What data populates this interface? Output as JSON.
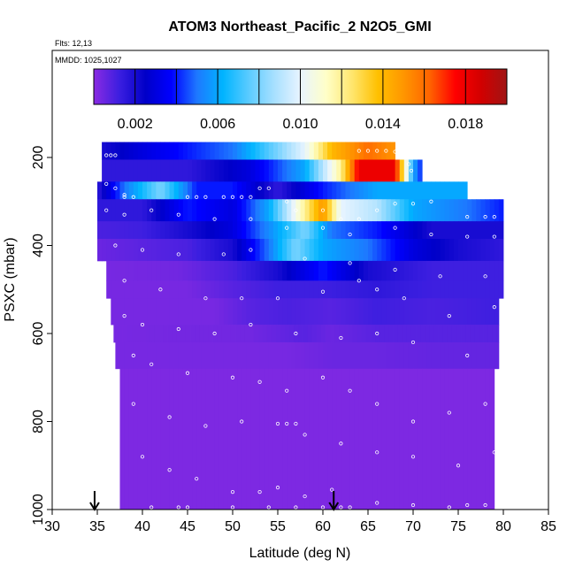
{
  "chart_data": {
    "type": "heatmap",
    "title": "ATOM3 Northeast_Pacific_2 N2O5_GMI",
    "flights_label": "Flts: 12,13",
    "mmdd_label": "MMDD: 1025,1027",
    "xlabel": "Latitude (deg N)",
    "ylabel": "PSXC (mbar)",
    "xlim": [
      30,
      85
    ],
    "ylim": [
      1000,
      0
    ],
    "x_ticks": [
      "30",
      "35",
      "40",
      "45",
      "50",
      "55",
      "60",
      "65",
      "70",
      "75",
      "80",
      "85"
    ],
    "y_ticks": [
      "200",
      "400",
      "600",
      "800",
      "1000"
    ],
    "colorbar": {
      "range": [
        0,
        0.02
      ],
      "tick_labels": [
        "0.002",
        "0.006",
        "0.010",
        "0.014",
        "0.018"
      ],
      "colors": [
        "#8a2be2",
        "#3b1ee0",
        "#0000c8",
        "#0000ff",
        "#1e78ff",
        "#00b4ff",
        "#5acbff",
        "#a8e0ff",
        "#e8f4ff",
        "#ffffc8",
        "#ffe66e",
        "#ffc000",
        "#ff9600",
        "#ff6400",
        "#ff0000",
        "#d20000",
        "#a01414"
      ]
    },
    "flight_markers_lat": [
      34.7,
      61.2
    ],
    "rows": [
      {
        "p0": 165,
        "p1": 205,
        "lat0": 35.5,
        "lat1": 68.0,
        "stops": [
          [
            35.5,
            0.002
          ],
          [
            40,
            0.003
          ],
          [
            50,
            0.005
          ],
          [
            55,
            0.008
          ],
          [
            58,
            0.01
          ],
          [
            61,
            0.014
          ],
          [
            65,
            0.016
          ],
          [
            68,
            0.015
          ]
        ]
      },
      {
        "p0": 205,
        "p1": 255,
        "lat0": 35.5,
        "lat1": 71.0,
        "stops": [
          [
            35.5,
            0.0015
          ],
          [
            45,
            0.0015
          ],
          [
            52,
            0.003
          ],
          [
            58,
            0.006
          ],
          [
            62,
            0.012
          ],
          [
            64,
            0.018
          ],
          [
            68,
            0.018
          ],
          [
            70,
            0.006
          ],
          [
            71,
            0.004
          ]
        ]
      },
      {
        "p0": 255,
        "p1": 295,
        "lat0": 35.0,
        "lat1": 76.0,
        "stops": [
          [
            35,
            0.0015
          ],
          [
            38,
            0.005
          ],
          [
            42,
            0.008
          ],
          [
            46,
            0.004
          ],
          [
            50,
            0.004
          ],
          [
            55,
            0.0015
          ],
          [
            60,
            0.004
          ],
          [
            66,
            0.006
          ],
          [
            72,
            0.006
          ],
          [
            76,
            0.006
          ]
        ]
      },
      {
        "p0": 295,
        "p1": 345,
        "lat0": 35.0,
        "lat1": 80.0,
        "stops": [
          [
            35,
            0.0015
          ],
          [
            40,
            0.0015
          ],
          [
            45,
            0.004
          ],
          [
            50,
            0.003
          ],
          [
            54,
            0.006
          ],
          [
            58,
            0.012
          ],
          [
            60,
            0.015
          ],
          [
            62,
            0.01
          ],
          [
            66,
            0.009
          ],
          [
            70,
            0.006
          ],
          [
            76,
            0.005
          ],
          [
            80,
            0.004
          ]
        ]
      },
      {
        "p0": 345,
        "p1": 385,
        "lat0": 35.0,
        "lat1": 80.0,
        "stops": [
          [
            35,
            0.001
          ],
          [
            40,
            0.0012
          ],
          [
            45,
            0.002
          ],
          [
            50,
            0.003
          ],
          [
            55,
            0.006
          ],
          [
            58,
            0.008
          ],
          [
            61,
            0.005
          ],
          [
            66,
            0.004
          ],
          [
            72,
            0.002
          ],
          [
            80,
            0.002
          ]
        ]
      },
      {
        "p0": 385,
        "p1": 435,
        "lat0": 35.0,
        "lat1": 80.0,
        "stops": [
          [
            35,
            0.0005
          ],
          [
            45,
            0.001
          ],
          [
            50,
            0.002
          ],
          [
            54,
            0.005
          ],
          [
            57,
            0.008
          ],
          [
            60,
            0.006
          ],
          [
            65,
            0.005
          ],
          [
            70,
            0.003
          ],
          [
            75,
            0.002
          ],
          [
            80,
            0.0015
          ]
        ]
      },
      {
        "p0": 435,
        "p1": 480,
        "lat0": 36.0,
        "lat1": 80.0,
        "stops": [
          [
            36,
            0.0003
          ],
          [
            44,
            0.0004
          ],
          [
            50,
            0.001
          ],
          [
            55,
            0.002
          ],
          [
            60,
            0.004
          ],
          [
            65,
            0.002
          ],
          [
            72,
            0.0012
          ],
          [
            80,
            0.0012
          ]
        ]
      },
      {
        "p0": 480,
        "p1": 520,
        "lat0": 36.0,
        "lat1": 80.0,
        "stops": [
          [
            36,
            0.0003
          ],
          [
            45,
            0.0003
          ],
          [
            50,
            0.0008
          ],
          [
            55,
            0.0012
          ],
          [
            60,
            0.0012
          ],
          [
            66,
            0.0015
          ],
          [
            72,
            0.0012
          ],
          [
            80,
            0.0012
          ]
        ]
      },
      {
        "p0": 520,
        "p1": 580,
        "lat0": 36.5,
        "lat1": 79.5,
        "stops": [
          [
            36.5,
            0.0003
          ],
          [
            48,
            0.0003
          ],
          [
            52,
            0.0008
          ],
          [
            56,
            0.001
          ],
          [
            61,
            0.0008
          ],
          [
            66,
            0.0012
          ],
          [
            72,
            0.001
          ],
          [
            79.5,
            0.0012
          ]
        ]
      },
      {
        "p0": 580,
        "p1": 620,
        "lat0": 36.8,
        "lat1": 79.5,
        "stops": [
          [
            36.8,
            0.0003
          ],
          [
            52,
            0.0004
          ],
          [
            58,
            0.0008
          ],
          [
            61,
            0.0005
          ],
          [
            66,
            0.0008
          ],
          [
            72,
            0.0008
          ],
          [
            79.5,
            0.0008
          ]
        ]
      },
      {
        "p0": 620,
        "p1": 680,
        "lat0": 37.0,
        "lat1": 79.5,
        "stops": [
          [
            37,
            0.0003
          ],
          [
            56,
            0.0003
          ],
          [
            61,
            0.0005
          ],
          [
            65,
            0.0005
          ],
          [
            72,
            0.0006
          ],
          [
            79.5,
            0.0006
          ]
        ]
      },
      {
        "p0": 680,
        "p1": 1000,
        "lat0": 37.5,
        "lat1": 79.0,
        "stops": [
          [
            37.5,
            0.0002
          ],
          [
            79,
            0.0002
          ]
        ]
      }
    ],
    "points": [
      [
        36,
        195
      ],
      [
        36.5,
        195
      ],
      [
        37,
        195
      ],
      [
        64,
        185
      ],
      [
        65,
        185
      ],
      [
        66,
        185
      ],
      [
        67,
        185
      ],
      [
        68,
        187
      ],
      [
        68.5,
        190
      ],
      [
        69,
        200
      ],
      [
        69.5,
        215
      ],
      [
        69.8,
        230
      ],
      [
        38,
        290
      ],
      [
        39,
        290
      ],
      [
        45,
        290
      ],
      [
        46,
        290
      ],
      [
        47,
        290
      ],
      [
        49,
        290
      ],
      [
        50,
        290
      ],
      [
        51,
        290
      ],
      [
        52,
        290
      ],
      [
        53,
        270
      ],
      [
        54,
        270
      ],
      [
        56,
        300
      ],
      [
        57,
        320
      ],
      [
        60,
        320
      ],
      [
        62,
        340
      ],
      [
        64,
        340
      ],
      [
        66,
        320
      ],
      [
        68,
        305
      ],
      [
        70,
        305
      ],
      [
        72,
        300
      ],
      [
        76,
        335
      ],
      [
        78,
        335
      ],
      [
        79,
        335
      ],
      [
        36,
        260
      ],
      [
        37,
        270
      ],
      [
        38,
        285
      ],
      [
        36,
        320
      ],
      [
        38,
        330
      ],
      [
        41,
        320
      ],
      [
        44,
        330
      ],
      [
        48,
        340
      ],
      [
        52,
        340
      ],
      [
        56,
        360
      ],
      [
        60,
        360
      ],
      [
        63,
        375
      ],
      [
        68,
        360
      ],
      [
        72,
        375
      ],
      [
        76,
        380
      ],
      [
        79,
        380
      ],
      [
        37,
        400
      ],
      [
        40,
        410
      ],
      [
        44,
        420
      ],
      [
        49,
        420
      ],
      [
        52,
        410
      ],
      [
        58,
        430
      ],
      [
        63,
        440
      ],
      [
        68,
        455
      ],
      [
        73,
        470
      ],
      [
        78,
        470
      ],
      [
        38,
        480
      ],
      [
        42,
        500
      ],
      [
        47,
        520
      ],
      [
        51,
        520
      ],
      [
        55,
        520
      ],
      [
        60,
        505
      ],
      [
        64,
        480
      ],
      [
        66,
        500
      ],
      [
        69,
        520
      ],
      [
        74,
        560
      ],
      [
        79,
        540
      ],
      [
        38,
        560
      ],
      [
        40,
        580
      ],
      [
        44,
        590
      ],
      [
        48,
        600
      ],
      [
        52,
        580
      ],
      [
        57,
        600
      ],
      [
        62,
        610
      ],
      [
        66,
        600
      ],
      [
        70,
        620
      ],
      [
        76,
        650
      ],
      [
        39,
        650
      ],
      [
        41,
        670
      ],
      [
        45,
        690
      ],
      [
        50,
        700
      ],
      [
        53,
        710
      ],
      [
        56,
        730
      ],
      [
        60,
        700
      ],
      [
        63,
        730
      ],
      [
        66,
        760
      ],
      [
        70,
        800
      ],
      [
        74,
        780
      ],
      [
        78,
        760
      ],
      [
        39,
        760
      ],
      [
        43,
        790
      ],
      [
        47,
        810
      ],
      [
        51,
        800
      ],
      [
        55,
        805
      ],
      [
        56,
        805
      ],
      [
        57,
        805
      ],
      [
        58,
        830
      ],
      [
        62,
        850
      ],
      [
        66,
        870
      ],
      [
        70,
        880
      ],
      [
        75,
        900
      ],
      [
        79,
        870
      ],
      [
        40,
        880
      ],
      [
        43,
        910
      ],
      [
        46,
        930
      ],
      [
        50,
        960
      ],
      [
        53,
        960
      ],
      [
        55,
        950
      ],
      [
        58,
        970
      ],
      [
        61,
        955
      ],
      [
        63,
        995
      ],
      [
        66,
        985
      ],
      [
        70,
        990
      ],
      [
        74,
        995
      ],
      [
        76,
        990
      ],
      [
        78,
        990
      ],
      [
        41,
        995
      ],
      [
        44,
        995
      ],
      [
        45,
        995
      ],
      [
        50,
        995
      ],
      [
        54,
        995
      ],
      [
        57,
        995
      ],
      [
        60,
        995
      ],
      [
        62,
        995
      ]
    ]
  }
}
